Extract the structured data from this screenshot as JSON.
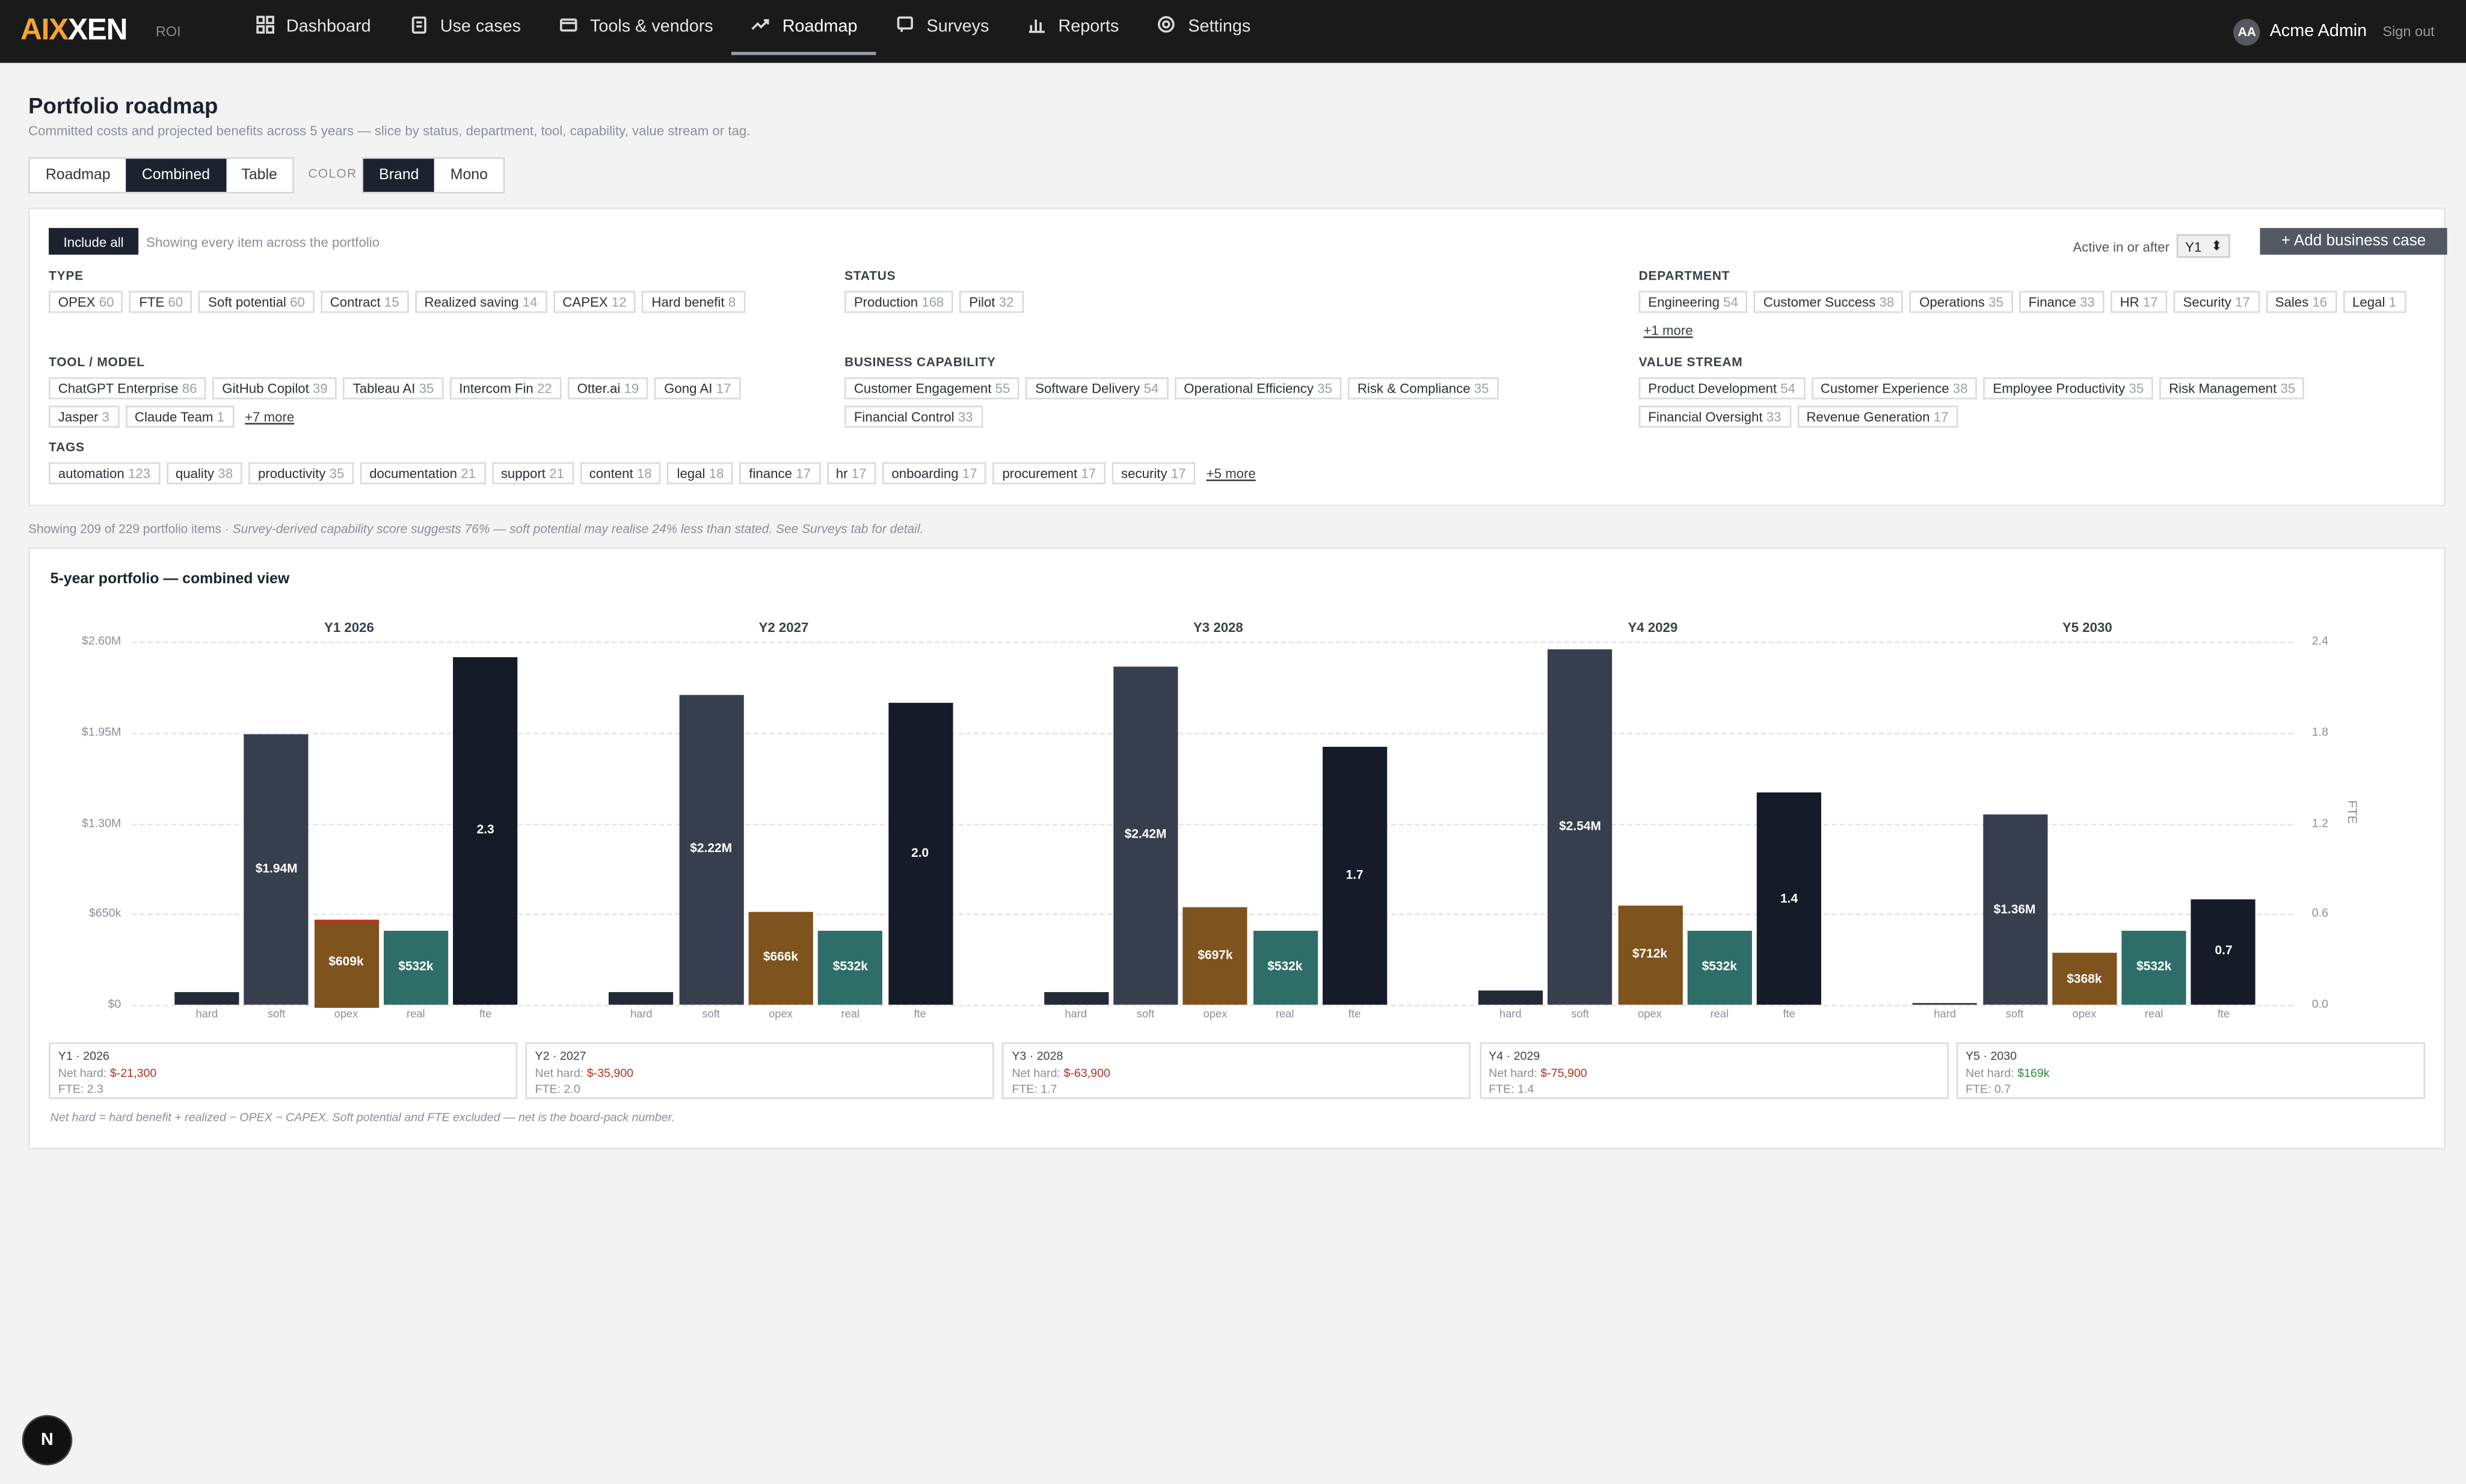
{
  "brand": {
    "name_accent": "AIX",
    "name_rest": "XEN",
    "suffix": "ROI"
  },
  "nav": [
    {
      "label": "Dashboard",
      "icon": "grid-icon",
      "active": false
    },
    {
      "label": "Use cases",
      "icon": "clipboard-icon",
      "active": false
    },
    {
      "label": "Tools & vendors",
      "icon": "wallet-icon",
      "active": false
    },
    {
      "label": "Roadmap",
      "icon": "trend-icon",
      "active": true
    },
    {
      "label": "Surveys",
      "icon": "survey-icon",
      "active": false
    },
    {
      "label": "Reports",
      "icon": "bar-chart-icon",
      "active": false
    },
    {
      "label": "Settings",
      "icon": "gear-icon",
      "active": false
    }
  ],
  "user": {
    "initials": "AA",
    "name": "Acme Admin",
    "signout": "Sign out"
  },
  "page": {
    "title": "Portfolio roadmap",
    "subtitle": "Committed costs and projected benefits across 5 years — slice by status, department, tool, capability, value stream or tag.",
    "views": [
      "Roadmap",
      "Combined",
      "Table"
    ],
    "active_view": "Combined",
    "color_label": "COLOR",
    "color_modes": [
      "Brand",
      "Mono"
    ],
    "active_color": "Brand"
  },
  "filters": {
    "include_all": "Include all",
    "hint": "Showing every item across the portfolio",
    "active_after_label": "Active in or after",
    "active_after_value": "Y1",
    "add_button": "+ Add business case",
    "groups": [
      {
        "key": "type",
        "label": "TYPE",
        "chips": [
          [
            "OPEX",
            "60"
          ],
          [
            "FTE",
            "60"
          ],
          [
            "Soft potential",
            "60"
          ],
          [
            "Contract",
            "15"
          ],
          [
            "Realized saving",
            "14"
          ],
          [
            "CAPEX",
            "12"
          ],
          [
            "Hard benefit",
            "8"
          ]
        ],
        "more": ""
      },
      {
        "key": "status",
        "label": "STATUS",
        "chips": [
          [
            "Production",
            "168"
          ],
          [
            "Pilot",
            "32"
          ]
        ],
        "more": ""
      },
      {
        "key": "department",
        "label": "DEPARTMENT",
        "chips": [
          [
            "Engineering",
            "54"
          ],
          [
            "Customer Success",
            "38"
          ],
          [
            "Operations",
            "35"
          ],
          [
            "Finance",
            "33"
          ],
          [
            "HR",
            "17"
          ],
          [
            "Security",
            "17"
          ],
          [
            "Sales",
            "16"
          ],
          [
            "Legal",
            "1"
          ]
        ],
        "more": "+1 more"
      },
      {
        "key": "tool",
        "label": "TOOL / MODEL",
        "chips": [
          [
            "ChatGPT Enterprise",
            "86"
          ],
          [
            "GitHub Copilot",
            "39"
          ],
          [
            "Tableau AI",
            "35"
          ],
          [
            "Intercom Fin",
            "22"
          ],
          [
            "Otter.ai",
            "19"
          ],
          [
            "Gong AI",
            "17"
          ],
          [
            "Jasper",
            "3"
          ],
          [
            "Claude Team",
            "1"
          ]
        ],
        "more": "+7 more"
      },
      {
        "key": "capability",
        "label": "BUSINESS CAPABILITY",
        "chips": [
          [
            "Customer Engagement",
            "55"
          ],
          [
            "Software Delivery",
            "54"
          ],
          [
            "Operational Efficiency",
            "35"
          ],
          [
            "Risk & Compliance",
            "35"
          ],
          [
            "Financial Control",
            "33"
          ]
        ],
        "more": ""
      },
      {
        "key": "valuestream",
        "label": "VALUE STREAM",
        "chips": [
          [
            "Product Development",
            "54"
          ],
          [
            "Customer Experience",
            "38"
          ],
          [
            "Employee Productivity",
            "35"
          ],
          [
            "Risk Management",
            "35"
          ],
          [
            "Financial Oversight",
            "33"
          ],
          [
            "Revenue Generation",
            "17"
          ]
        ],
        "more": ""
      },
      {
        "key": "tags",
        "label": "TAGS",
        "chips": [
          [
            "automation",
            "123"
          ],
          [
            "quality",
            "38"
          ],
          [
            "productivity",
            "35"
          ],
          [
            "documentation",
            "21"
          ],
          [
            "support",
            "21"
          ],
          [
            "content",
            "18"
          ],
          [
            "legal",
            "18"
          ],
          [
            "finance",
            "17"
          ],
          [
            "hr",
            "17"
          ],
          [
            "onboarding",
            "17"
          ],
          [
            "procurement",
            "17"
          ],
          [
            "security",
            "17"
          ]
        ],
        "more": "+5 more"
      }
    ]
  },
  "showing": {
    "count_text": "Showing 209 of 229 portfolio items",
    "note": " · Survey-derived capability score suggests 76% — soft potential may realise 24% less than stated. See Surveys tab for detail."
  },
  "chart_data": {
    "type": "bar",
    "title": "5-year portfolio — combined view",
    "groups": [
      "Y1 2026",
      "Y2 2027",
      "Y3 2028",
      "Y4 2029",
      "Y5 2030"
    ],
    "categories": [
      "hard",
      "soft",
      "opex",
      "real",
      "fte"
    ],
    "left_axis": {
      "unit": "$",
      "ylim": [
        0,
        2600000
      ],
      "ticks": [
        "$0",
        "$650k",
        "$1.30M",
        "$1.95M",
        "$2.60M"
      ]
    },
    "right_axis": {
      "label": "FTE",
      "ylim": [
        0,
        2.4
      ],
      "ticks": [
        "0.0",
        "0.6",
        "1.2",
        "1.8",
        "2.4"
      ]
    },
    "colors": {
      "hard": "#232a38",
      "soft": "#373f4e",
      "opex": "#7e531e",
      "real": "#2f6d68",
      "fte": "#151b29",
      "capex_cap": "#b3321e"
    },
    "series": [
      {
        "name": "hard",
        "values": [
          85000,
          95000,
          95000,
          100000,
          10000
        ],
        "labels": [
          "",
          "",
          "",
          "",
          ""
        ]
      },
      {
        "name": "soft",
        "values": [
          1940000,
          2220000,
          2420000,
          2540000,
          1360000
        ],
        "labels": [
          "$1.94M",
          "$2.22M",
          "$2.42M",
          "$2.54M",
          "$1.36M"
        ]
      },
      {
        "name": "opex",
        "values": [
          609000,
          666000,
          697000,
          712000,
          368000
        ],
        "labels": [
          "$609k",
          "$666k",
          "$697k",
          "$712k",
          "$368k"
        ]
      },
      {
        "name": "real",
        "values": [
          532000,
          532000,
          532000,
          532000,
          532000
        ],
        "labels": [
          "$532k",
          "$532k",
          "$532k",
          "$532k",
          "$532k"
        ]
      },
      {
        "name": "fte",
        "values": [
          2.3,
          2.0,
          1.7,
          1.4,
          0.7
        ],
        "labels": [
          "2.3",
          "2.0",
          "1.7",
          "1.4",
          "0.7"
        ]
      }
    ]
  },
  "year_summaries": [
    {
      "title": "Y1 · 2026",
      "net_label": "Net hard: ",
      "net": "$-21,300",
      "sign": "neg",
      "fte": "FTE: 2.3"
    },
    {
      "title": "Y2 · 2027",
      "net_label": "Net hard: ",
      "net": "$-35,900",
      "sign": "neg",
      "fte": "FTE: 2.0"
    },
    {
      "title": "Y3 · 2028",
      "net_label": "Net hard: ",
      "net": "$-63,900",
      "sign": "neg",
      "fte": "FTE: 1.7"
    },
    {
      "title": "Y4 · 2029",
      "net_label": "Net hard: ",
      "net": "$-75,900",
      "sign": "neg",
      "fte": "FTE: 1.4"
    },
    {
      "title": "Y5 · 2030",
      "net_label": "Net hard: ",
      "net": "$169k",
      "sign": "pos",
      "fte": "FTE: 0.7"
    }
  ],
  "footnote": "Net hard = hard benefit + realized − OPEX − CAPEX. Soft potential and FTE excluded — net is the board-pack number.",
  "fab_label": "N"
}
